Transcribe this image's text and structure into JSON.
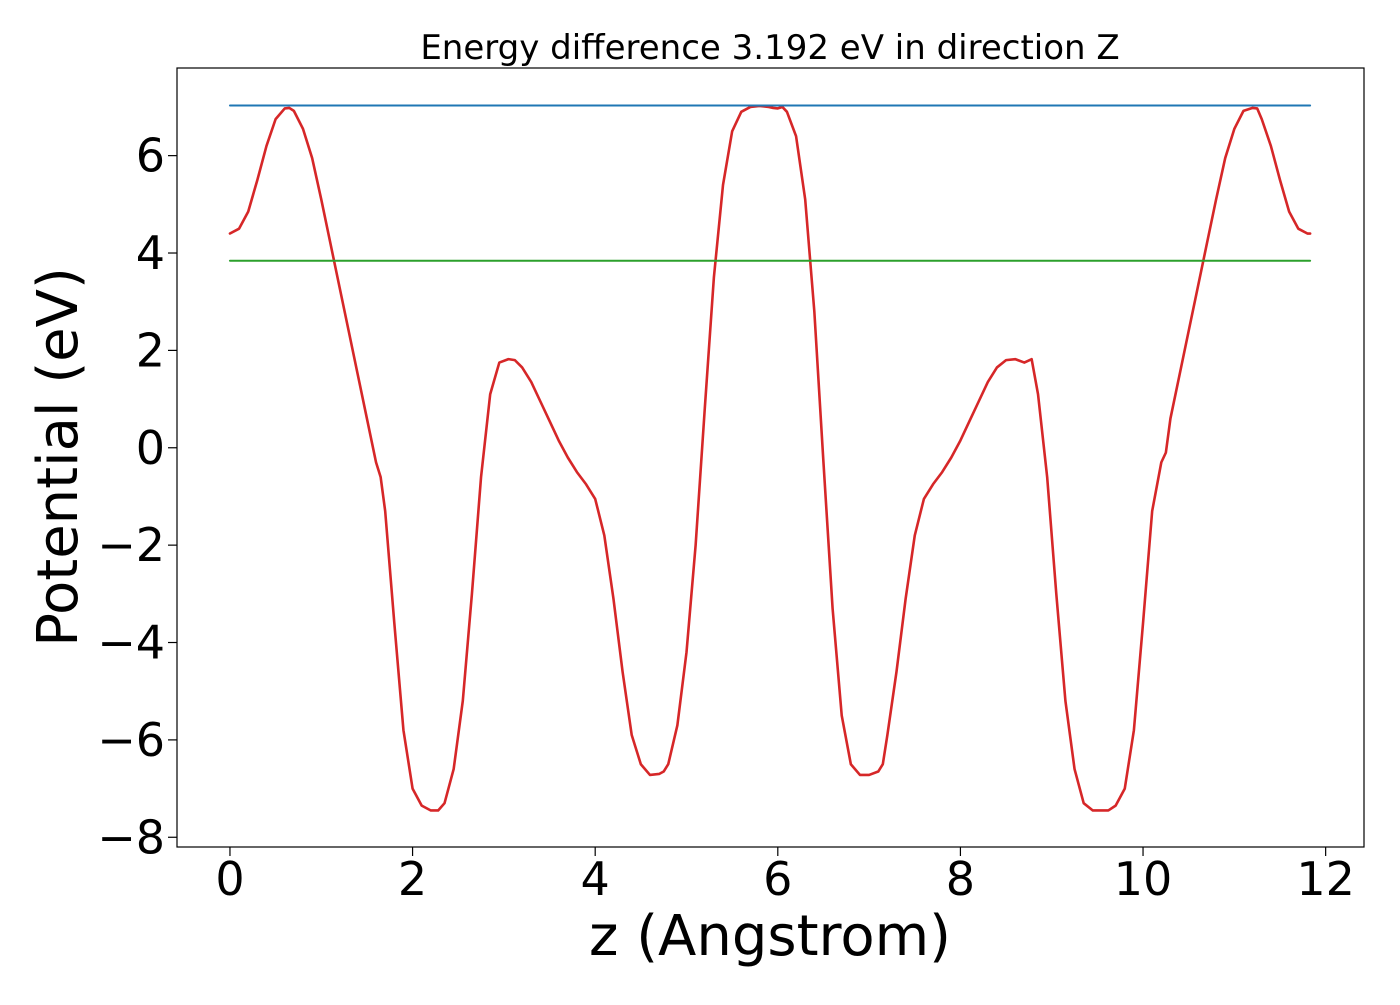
{
  "chart_data": {
    "type": "line",
    "title": "Energy difference 3.192 eV in direction Z",
    "xlabel": "z (Angstrom)",
    "ylabel": "Potential (eV)",
    "xlim": [
      -0.58,
      12.42
    ],
    "ylim": [
      -8.2,
      7.8
    ],
    "xticks": [
      0,
      2,
      4,
      6,
      8,
      10,
      12
    ],
    "xtick_labels": [
      "0",
      "2",
      "4",
      "6",
      "8",
      "10",
      "12"
    ],
    "yticks": [
      -8,
      -6,
      -4,
      -2,
      0,
      2,
      4,
      6
    ],
    "ytick_labels": [
      "−8",
      "−6",
      "−4",
      "−2",
      "0",
      "2",
      "4",
      "6"
    ],
    "grid": false,
    "series": [
      {
        "color": "#d62728",
        "x": [
          0.0,
          0.1,
          0.2,
          0.3,
          0.4,
          0.5,
          0.6,
          0.65,
          0.7,
          0.8,
          0.9,
          1.0,
          1.1,
          1.2,
          1.3,
          1.4,
          1.5,
          1.6,
          1.65,
          1.7,
          1.8,
          1.9,
          2.0,
          2.1,
          2.2,
          2.28,
          2.35,
          2.45,
          2.55,
          2.65,
          2.75,
          2.85,
          2.95,
          3.05,
          3.12,
          3.2,
          3.3,
          3.4,
          3.5,
          3.6,
          3.7,
          3.8,
          3.9,
          4.0,
          4.1,
          4.2,
          4.3,
          4.4,
          4.5,
          4.6,
          4.7,
          4.75,
          4.8,
          4.9,
          5.0,
          5.1,
          5.2,
          5.3,
          5.4,
          5.5,
          5.6,
          5.7,
          5.8,
          5.9,
          5.95,
          6.0,
          6.05,
          6.1,
          6.2,
          6.3,
          6.4,
          6.5,
          6.6,
          6.7,
          6.8,
          6.9,
          7.0,
          7.1,
          7.15,
          7.2,
          7.3,
          7.4,
          7.5,
          7.6,
          7.7,
          7.8,
          7.9,
          8.0,
          8.1,
          8.2,
          8.3,
          8.4,
          8.5,
          8.6,
          8.7,
          8.78,
          8.85,
          8.95,
          9.05,
          9.15,
          9.25,
          9.35,
          9.45,
          9.55,
          9.62,
          9.7,
          9.8,
          9.9,
          10.0,
          10.1,
          10.2,
          10.25,
          10.3,
          10.4,
          10.5,
          10.6,
          10.7,
          10.8,
          10.9,
          11.0,
          11.1,
          11.2,
          11.25,
          11.3,
          11.4,
          11.5,
          11.6,
          11.7,
          11.8,
          11.83
        ],
        "y": [
          4.4,
          4.5,
          4.85,
          5.5,
          6.2,
          6.75,
          6.97,
          6.98,
          6.92,
          6.55,
          5.95,
          5.1,
          4.2,
          3.3,
          2.4,
          1.5,
          0.6,
          -0.3,
          -0.6,
          -1.3,
          -3.6,
          -5.8,
          -7.0,
          -7.35,
          -7.45,
          -7.45,
          -7.3,
          -6.6,
          -5.2,
          -3.0,
          -0.6,
          1.1,
          1.75,
          1.82,
          1.8,
          1.65,
          1.35,
          0.95,
          0.55,
          0.15,
          -0.2,
          -0.5,
          -0.75,
          -1.05,
          -1.8,
          -3.1,
          -4.6,
          -5.9,
          -6.5,
          -6.72,
          -6.7,
          -6.65,
          -6.5,
          -5.7,
          -4.2,
          -2.0,
          0.8,
          3.5,
          5.4,
          6.5,
          6.9,
          7.0,
          7.02,
          7.0,
          6.98,
          6.97,
          7.0,
          6.9,
          6.4,
          5.1,
          2.8,
          -0.3,
          -3.3,
          -5.5,
          -6.5,
          -6.72,
          -6.72,
          -6.65,
          -6.5,
          -5.9,
          -4.6,
          -3.1,
          -1.8,
          -1.05,
          -0.75,
          -0.5,
          -0.2,
          0.15,
          0.55,
          0.95,
          1.35,
          1.65,
          1.8,
          1.82,
          1.75,
          1.82,
          1.1,
          -0.6,
          -3.0,
          -5.2,
          -6.6,
          -7.3,
          -7.45,
          -7.45,
          -7.45,
          -7.35,
          -7.0,
          -5.8,
          -3.6,
          -1.3,
          -0.3,
          -0.1,
          0.6,
          1.5,
          2.4,
          3.3,
          4.2,
          5.1,
          5.95,
          6.55,
          6.92,
          6.98,
          6.97,
          6.75,
          6.2,
          5.5,
          4.85,
          4.5,
          4.4,
          4.4
        ]
      },
      {
        "color": "#1f77b4",
        "x": [
          0.0,
          11.83
        ],
        "y": [
          7.03,
          7.03
        ]
      },
      {
        "color": "#2ca02c",
        "x": [
          0.0,
          11.83
        ],
        "y": [
          3.84,
          3.84
        ]
      }
    ]
  }
}
